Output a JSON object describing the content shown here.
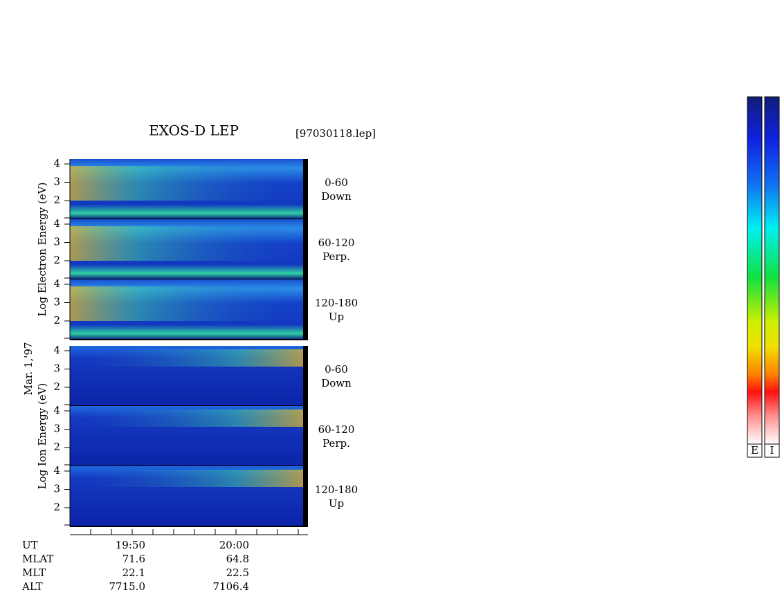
{
  "title": "EXOS-D LEP",
  "file": "[97030118.lep]",
  "date": "Mar. 1,'97",
  "groups": [
    {
      "ylabel": "Log  Electron  Energy (eV)",
      "panels": [
        {
          "yticks": [
            4,
            3,
            2
          ],
          "angle": "0-60",
          "direction": "Down"
        },
        {
          "yticks": [
            4,
            3,
            2
          ],
          "angle": "60-120",
          "direction": "Perp."
        },
        {
          "yticks": [
            4,
            3,
            2
          ],
          "angle": "120-180",
          "direction": "Up"
        }
      ]
    },
    {
      "ylabel": "Log  Ion  Energy (eV)",
      "panels": [
        {
          "yticks": [
            4,
            3,
            2
          ],
          "angle": "0-60",
          "direction": "Down"
        },
        {
          "yticks": [
            4,
            3,
            2
          ],
          "angle": "60-120",
          "direction": "Perp."
        },
        {
          "yticks": [
            4,
            3,
            2
          ],
          "angle": "120-180",
          "direction": "Up"
        }
      ]
    }
  ],
  "rows": [
    {
      "label": "UT",
      "values": [
        "19:50",
        "20:00"
      ]
    },
    {
      "label": "MLAT",
      "values": [
        71.6,
        64.8
      ]
    },
    {
      "label": "MLT",
      "values": [
        22.1,
        22.5
      ]
    },
    {
      "label": "ALT",
      "values": [
        7715.0,
        7106.4
      ]
    }
  ],
  "colorbars": [
    "E",
    "I"
  ]
}
